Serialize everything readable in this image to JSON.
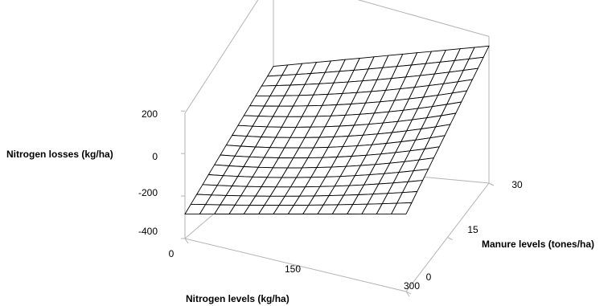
{
  "chart_data": {
    "type": "surface",
    "title": "",
    "zlabel": "Nitrogen losses (kg/ha)",
    "xlabel": "Nitrogen levels (kg/ha)",
    "ylabel": "Manure levels (tones/ha)",
    "z_ticks": [
      "200",
      "0",
      "-200",
      "-400"
    ],
    "x_ticks": [
      "0",
      "150",
      "300"
    ],
    "y_ticks": [
      "0",
      "15",
      "30"
    ],
    "zlim": [
      -400,
      250
    ],
    "x_range": [
      0,
      300
    ],
    "y_range": [
      0,
      30
    ],
    "grid_steps": 15,
    "surface_corners": {
      "n0_m0": -285,
      "n300_m0": -35,
      "n0_m30": 55,
      "n300_m30": 245
    },
    "surface_curvature": 90
  }
}
